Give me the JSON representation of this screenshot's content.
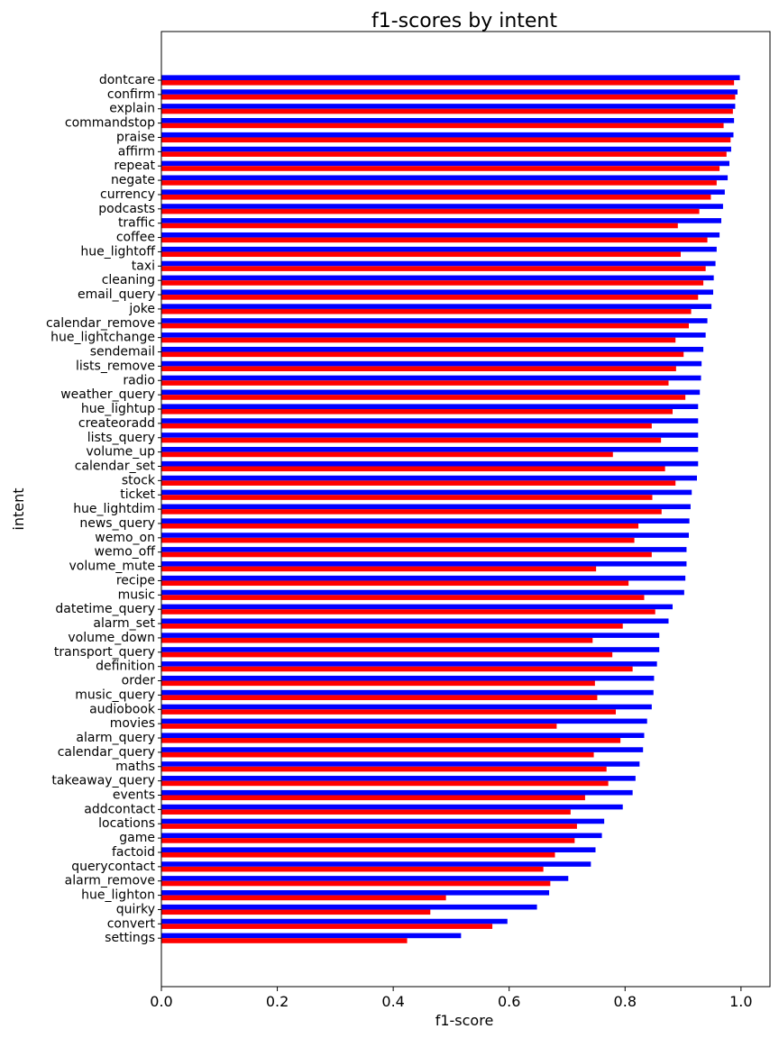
{
  "chart_data": {
    "type": "bar",
    "orientation": "horizontal",
    "title": "f1-scores by intent",
    "xlabel": "f1-score",
    "ylabel": "intent",
    "xlim": [
      0.0,
      1.05
    ],
    "xticks": [
      "0.0",
      "0.2",
      "0.4",
      "0.6",
      "0.8",
      "1.0"
    ],
    "grid": false,
    "legend": "none",
    "colors": {
      "series_a": "#0000ff",
      "series_b": "#ff0000"
    },
    "categories": [
      "dontcare",
      "confirm",
      "explain",
      "commandstop",
      "praise",
      "affirm",
      "repeat",
      "negate",
      "currency",
      "podcasts",
      "traffic",
      "coffee",
      "hue_lightoff",
      "taxi",
      "cleaning",
      "email_query",
      "joke",
      "calendar_remove",
      "hue_lightchange",
      "sendemail",
      "lists_remove",
      "radio",
      "weather_query",
      "hue_lightup",
      "createoradd",
      "lists_query",
      "volume_up",
      "calendar_set",
      "stock",
      "ticket",
      "hue_lightdim",
      "news_query",
      "wemo_on",
      "wemo_off",
      "volume_mute",
      "recipe",
      "music",
      "datetime_query",
      "alarm_set",
      "volume_down",
      "transport_query",
      "definition",
      "order",
      "music_query",
      "audiobook",
      "movies",
      "alarm_query",
      "calendar_query",
      "maths",
      "takeaway_query",
      "events",
      "addcontact",
      "locations",
      "game",
      "factoid",
      "querycontact",
      "alarm_remove",
      "hue_lighton",
      "quirky",
      "convert",
      "settings"
    ],
    "series": [
      {
        "values": [
          0.998,
          0.994,
          0.99,
          0.988,
          0.987,
          0.983,
          0.98,
          0.977,
          0.972,
          0.969,
          0.966,
          0.963,
          0.958,
          0.956,
          0.953,
          0.952,
          0.949,
          0.942,
          0.939,
          0.935,
          0.932,
          0.931,
          0.929,
          0.926,
          0.926,
          0.926,
          0.926,
          0.926,
          0.924,
          0.915,
          0.913,
          0.911,
          0.91,
          0.906,
          0.906,
          0.904,
          0.902,
          0.882,
          0.875,
          0.859,
          0.859,
          0.855,
          0.85,
          0.849,
          0.846,
          0.838,
          0.833,
          0.831,
          0.825,
          0.818,
          0.813,
          0.796,
          0.764,
          0.76,
          0.749,
          0.741,
          0.702,
          0.669,
          0.648,
          0.597,
          0.517
        ]
      },
      {
        "values": [
          0.988,
          0.99,
          0.986,
          0.97,
          0.982,
          0.975,
          0.963,
          0.958,
          0.948,
          0.928,
          0.891,
          0.942,
          0.896,
          0.939,
          0.935,
          0.926,
          0.914,
          0.91,
          0.887,
          0.901,
          0.888,
          0.875,
          0.904,
          0.882,
          0.846,
          0.862,
          0.779,
          0.869,
          0.887,
          0.847,
          0.863,
          0.823,
          0.816,
          0.846,
          0.75,
          0.806,
          0.833,
          0.852,
          0.796,
          0.744,
          0.778,
          0.813,
          0.748,
          0.752,
          0.784,
          0.682,
          0.792,
          0.746,
          0.768,
          0.771,
          0.731,
          0.706,
          0.717,
          0.713,
          0.679,
          0.659,
          0.671,
          0.491,
          0.464,
          0.571,
          0.424
        ]
      }
    ]
  }
}
